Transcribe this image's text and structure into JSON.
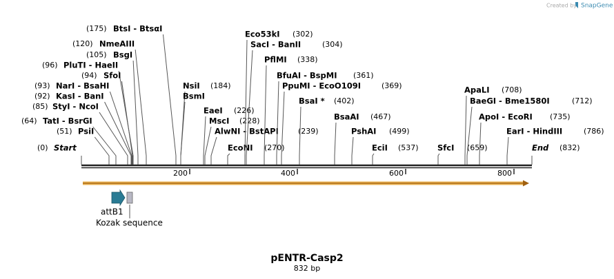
{
  "watermark": {
    "prefix": "Created by",
    "brand": "SnapGene"
  },
  "title": "pENTR-Casp2",
  "length": "832 bp",
  "ends": [
    {
      "name": "Start",
      "position": "(0)"
    },
    {
      "name": "End",
      "position": "(832)"
    }
  ],
  "sites": [
    {
      "name": "BtsI - BtsαI",
      "position": "(175)"
    },
    {
      "name": "NmeAIII",
      "position": "(120)"
    },
    {
      "name": "BsgI",
      "position": "(105)"
    },
    {
      "name": "PluTI - HaeII",
      "position": "(96)"
    },
    {
      "name": "SfoI",
      "position": "(94)"
    },
    {
      "name": "NarI - BsaHI",
      "position": "(93)"
    },
    {
      "name": "KasI - BanI",
      "position": "(92)"
    },
    {
      "name": "StyI - NcoI",
      "position": "(85)"
    },
    {
      "name": "TatI - BsrGI",
      "position": "(64)"
    },
    {
      "name": "PsiI",
      "position": "(51)"
    },
    {
      "name": "NsiI",
      "position": "(184)"
    },
    {
      "name": "BsmI"
    },
    {
      "name": "EaeI",
      "position": "(226)"
    },
    {
      "name": "MscI",
      "position": "(228)"
    },
    {
      "name": "AlwNI - BstAPI",
      "position": "(239)"
    },
    {
      "name": "EcoNI",
      "position": "(270)"
    },
    {
      "name": "Eco53kI",
      "position": "(302)"
    },
    {
      "name": "SacI - BanII",
      "position": "(304)"
    },
    {
      "name": "PflMI",
      "position": "(338)"
    },
    {
      "name": "BfuAI - BspMI",
      "position": "(361)"
    },
    {
      "name": "PpuMI - EcoO109I",
      "position": "(369)"
    },
    {
      "name": "BsaI *",
      "position": "(402)"
    },
    {
      "name": "BsaAI",
      "position": "(467)"
    },
    {
      "name": "PshAI",
      "position": "(499)"
    },
    {
      "name": "EciI",
      "position": "(537)"
    },
    {
      "name": "SfcI",
      "position": "(659)"
    },
    {
      "name": "ApaLI",
      "position": "(708)"
    },
    {
      "name": "BaeGI - Bme1580I",
      "position": "(712)"
    },
    {
      "name": "ApoI - EcoRI",
      "position": "(735)"
    },
    {
      "name": "EarI - HindIII",
      "position": "(786)"
    }
  ],
  "ruler": [
    "200",
    "400",
    "600",
    "800"
  ],
  "features": [
    {
      "label": "attB1"
    },
    {
      "label": "Kozak sequence"
    }
  ]
}
